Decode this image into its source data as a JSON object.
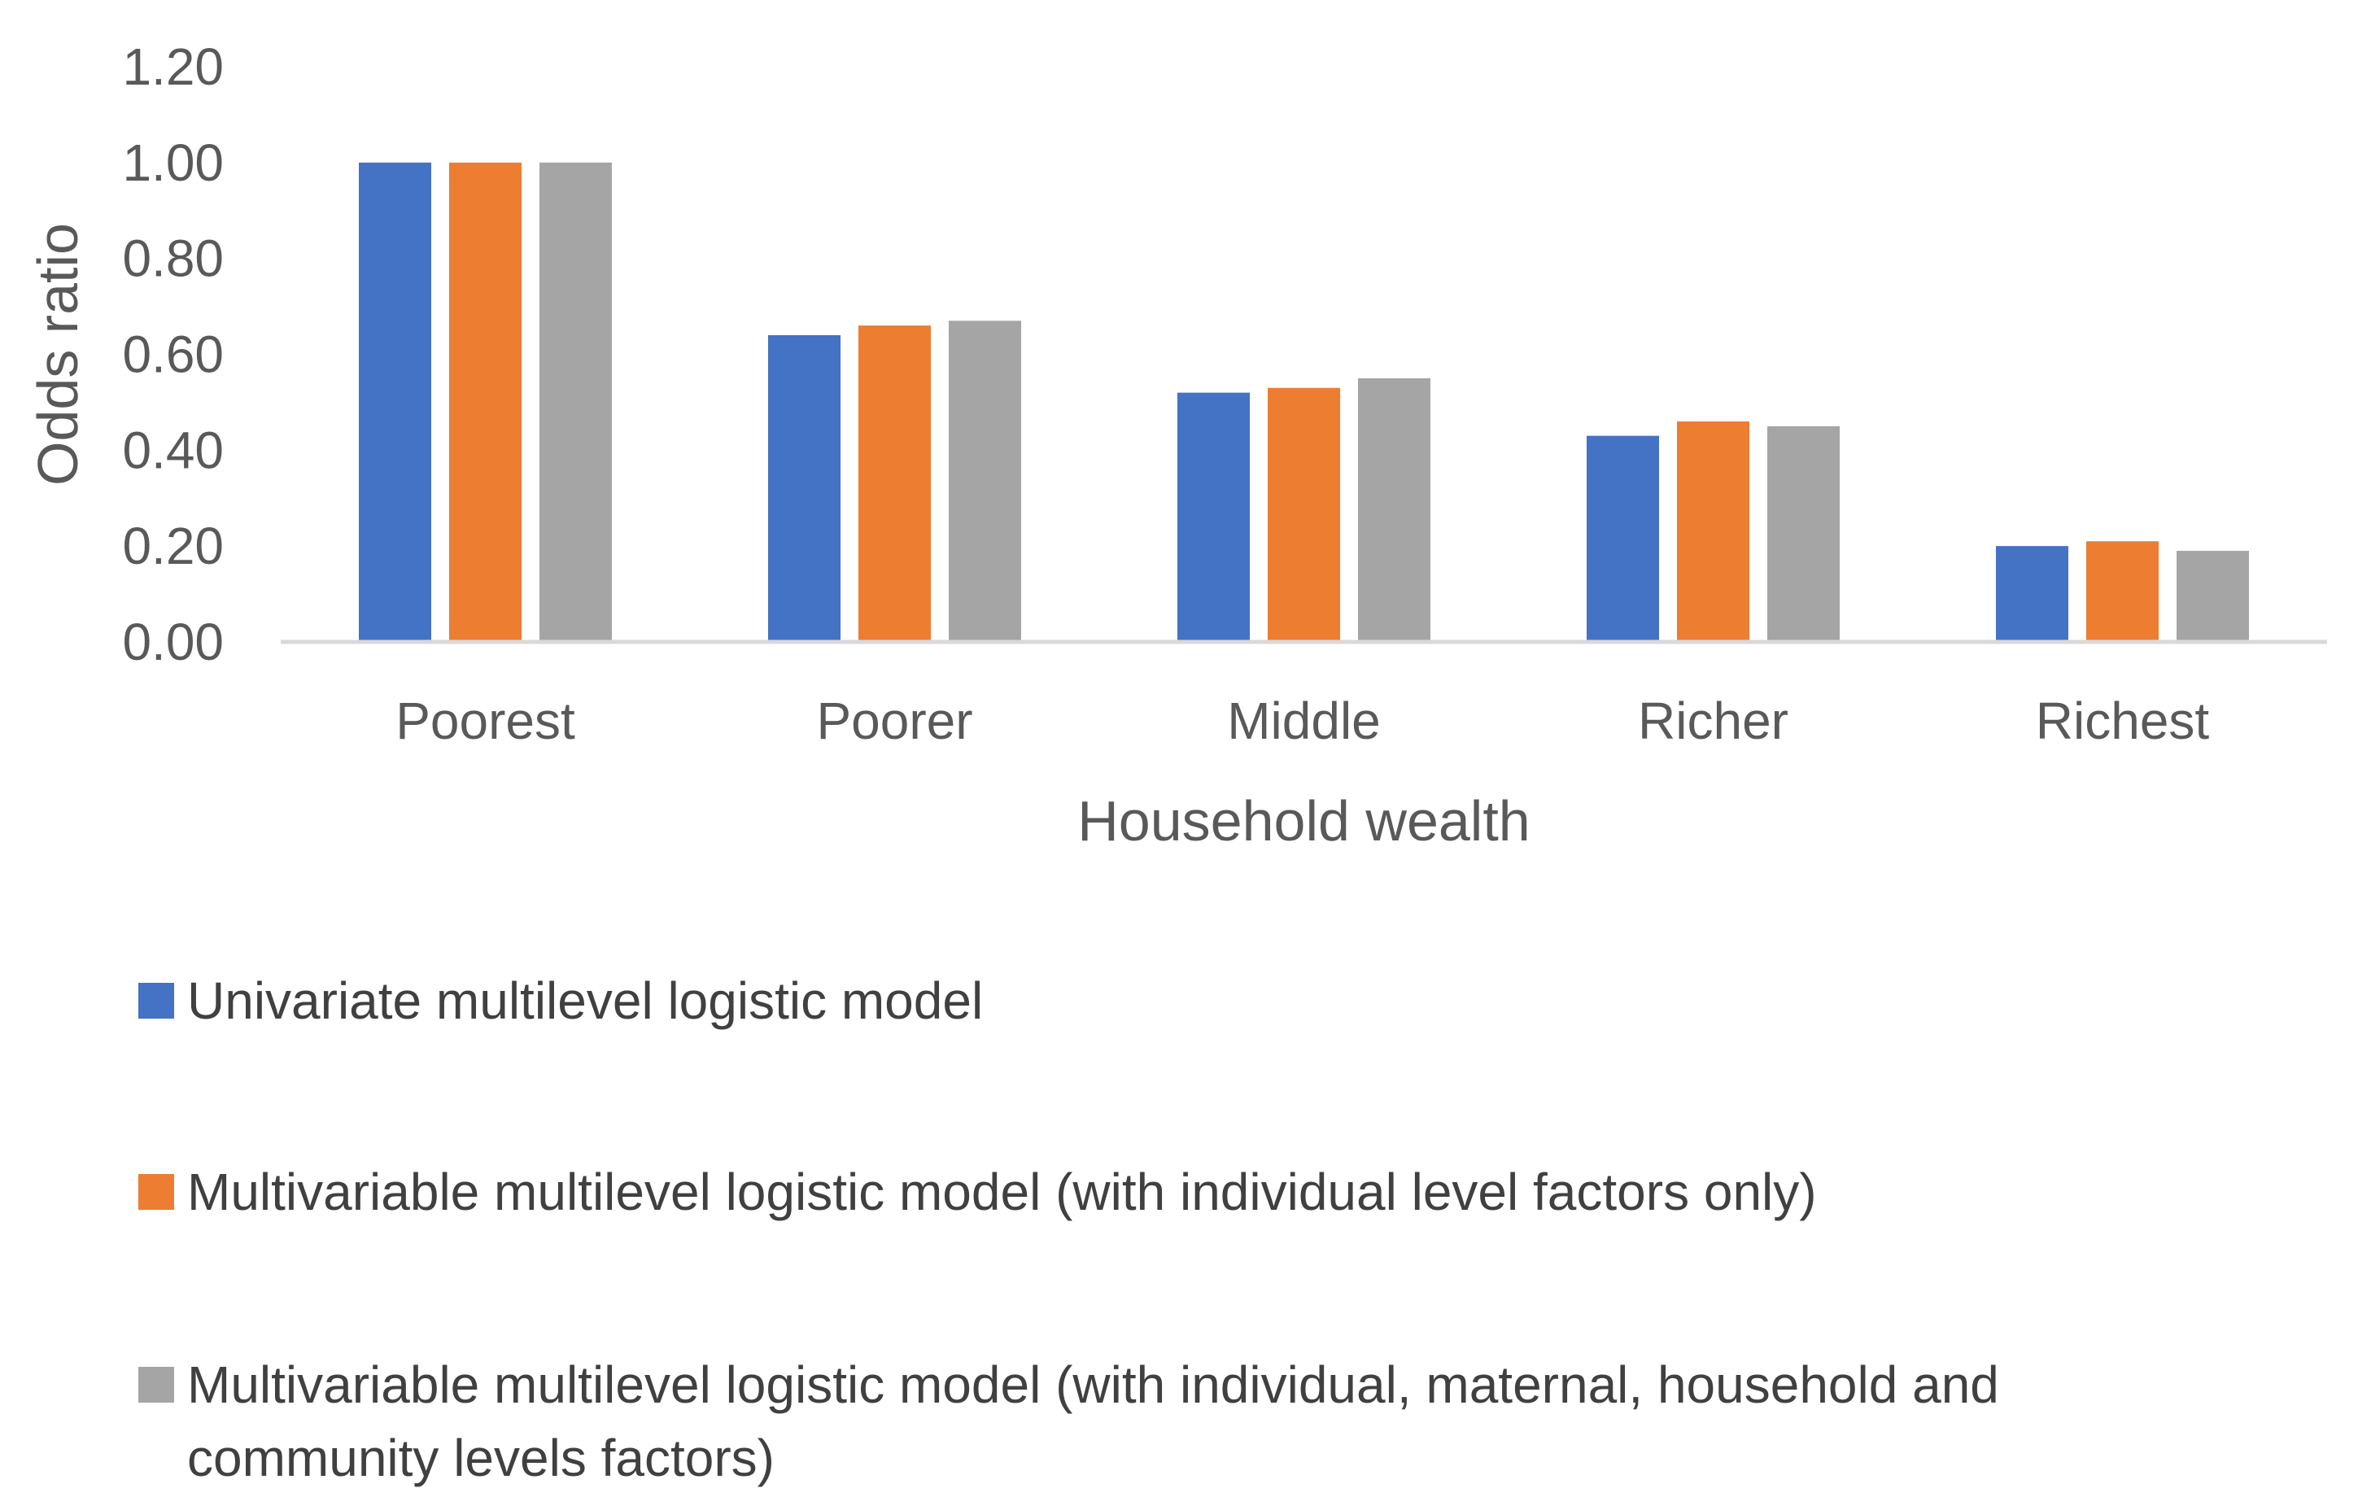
{
  "chart_data": {
    "type": "bar",
    "categories": [
      "Poorest",
      "Poorer",
      "Middle",
      "Richer",
      "Richest"
    ],
    "series": [
      {
        "name": "Univariate multilevel logistic model",
        "color": "#4472C4",
        "values": [
          1.0,
          0.64,
          0.52,
          0.43,
          0.2
        ]
      },
      {
        "name": "Multivariable multilevel logistic model (with individual level factors only)",
        "color": "#ED7D31",
        "values": [
          1.0,
          0.66,
          0.53,
          0.46,
          0.21
        ]
      },
      {
        "name_lines": [
          "Multivariable multilevel logistic model (with individual, maternal, household and",
          "community levels factors)"
        ],
        "color": "#A5A5A5",
        "values": [
          1.0,
          0.67,
          0.55,
          0.45,
          0.19
        ]
      }
    ],
    "xlabel": "Household wealth",
    "ylabel": "Odds ratio",
    "ylim": [
      0,
      1.2
    ],
    "yticks": [
      "0.00",
      "0.20",
      "0.40",
      "0.60",
      "0.80",
      "1.00",
      "1.20"
    ],
    "grid": false,
    "legend": "bottom"
  }
}
